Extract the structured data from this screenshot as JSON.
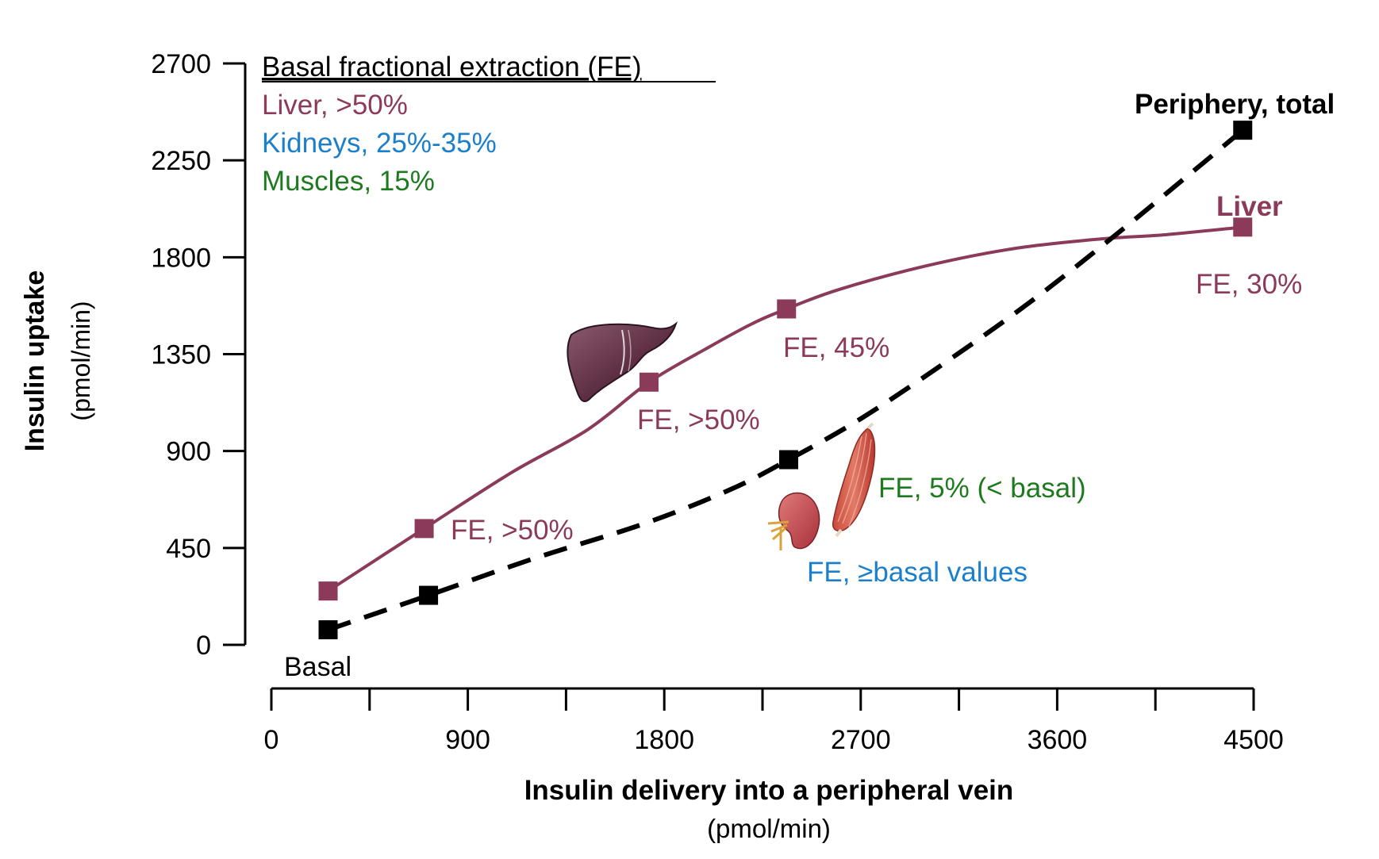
{
  "colors": {
    "liver": "#8B3A5A",
    "periphery": "#000000",
    "kidneys": "#1B7FCC",
    "muscles": "#1E7A1E",
    "axis": "#000000"
  },
  "chart_data": {
    "type": "line",
    "title": "",
    "xlabel": "Insulin delivery into a peripheral vein",
    "xlabel_unit": "(pmol/min)",
    "ylabel": "Insulin uptake",
    "ylabel_unit": "(pmol/min)",
    "xlim": [
      0,
      4500
    ],
    "ylim": [
      0,
      2700
    ],
    "x_ticks": [
      0,
      900,
      1800,
      2700,
      3600,
      4500
    ],
    "x_tick_labels": [
      "0",
      "900",
      "1800",
      "2700",
      "3600",
      "4500"
    ],
    "y_ticks": [
      0,
      450,
      900,
      1350,
      1800,
      2250,
      2700
    ],
    "y_tick_labels": [
      "0",
      "450",
      "900",
      "1350",
      "1800",
      "2250",
      "2700"
    ],
    "series": [
      {
        "name": "Liver",
        "style": "solid",
        "color_key": "liver",
        "x": [
          260,
          700,
          1730,
          2360,
          4450
        ],
        "y": [
          250,
          540,
          1220,
          1560,
          1940
        ],
        "curve_x": [
          260,
          700,
          1100,
          1450,
          1730,
          2000,
          2200,
          2360,
          2600,
          3000,
          3400,
          3800,
          4100,
          4450
        ],
        "curve_y": [
          250,
          540,
          800,
          1000,
          1220,
          1380,
          1490,
          1560,
          1650,
          1760,
          1840,
          1885,
          1905,
          1940
        ]
      },
      {
        "name": "Periphery, total",
        "style": "dashed",
        "color_key": "periphery",
        "x": [
          260,
          720,
          2370,
          4450
        ],
        "y": [
          70,
          230,
          860,
          2390
        ],
        "curve_x": [
          260,
          720,
          1200,
          1700,
          2100,
          2370,
          2700,
          3100,
          3500,
          3900,
          4200,
          4450
        ],
        "curve_y": [
          70,
          230,
          400,
          560,
          720,
          860,
          1050,
          1320,
          1610,
          1930,
          2180,
          2390
        ]
      }
    ],
    "legend": {
      "title": "Basal fractional extraction (FE)",
      "items": [
        {
          "label": "Liver, >50%",
          "color_key": "liver"
        },
        {
          "label": "Kidneys, 25%-35%",
          "color_key": "kidneys"
        },
        {
          "label": "Muscles, 15%",
          "color_key": "muscles"
        }
      ]
    },
    "annotations": [
      {
        "text": "Basal",
        "color_key": "periphery",
        "bold": false
      },
      {
        "text": "FE, >50%",
        "color_key": "liver",
        "bold": false
      },
      {
        "text": "FE, >50%",
        "color_key": "liver",
        "bold": false
      },
      {
        "text": "FE, 45%",
        "color_key": "liver",
        "bold": false
      },
      {
        "text": "FE, 30%",
        "color_key": "liver",
        "bold": false
      },
      {
        "text": "Liver",
        "color_key": "liver",
        "bold": true
      },
      {
        "text": "Periphery, total",
        "color_key": "periphery",
        "bold": true
      },
      {
        "text": "FE, 5% (< basal)",
        "color_key": "muscles",
        "bold": false
      },
      {
        "text": "FE, ≥basal values",
        "color_key": "kidneys",
        "bold": false
      }
    ],
    "organ_icons": [
      "liver-icon",
      "kidney-icon",
      "muscle-icon"
    ]
  }
}
